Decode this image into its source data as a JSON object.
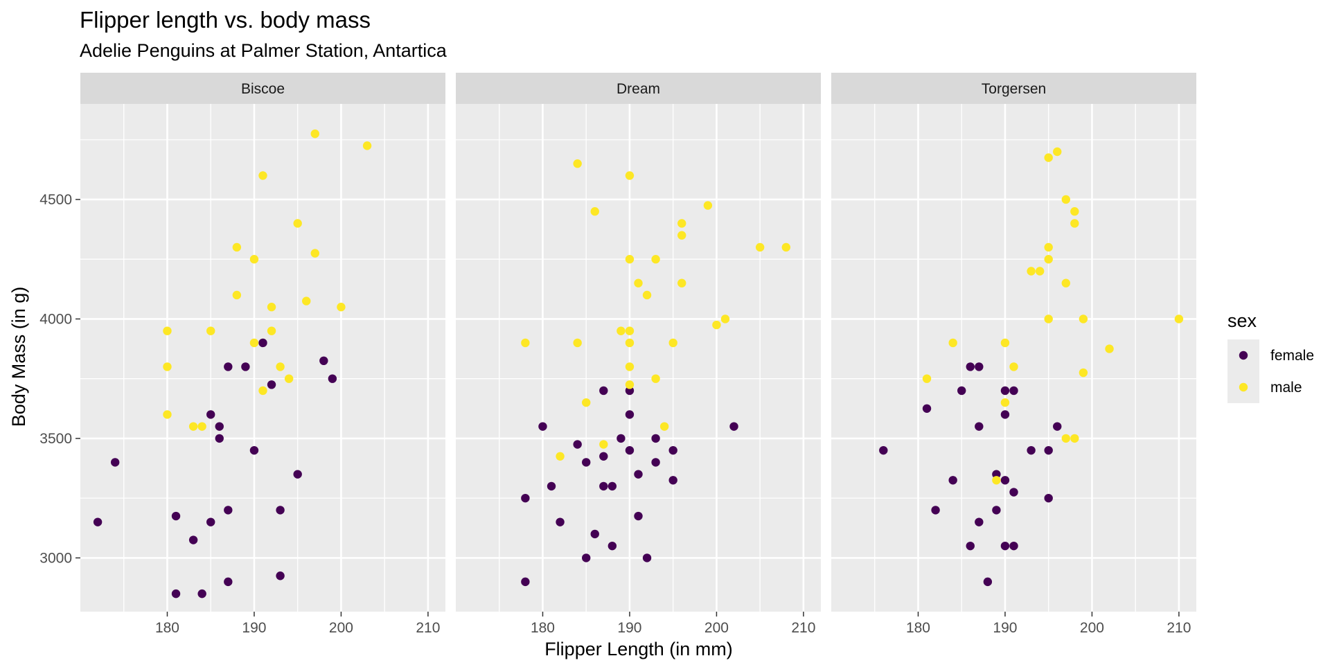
{
  "chart_data": {
    "type": "scatter",
    "title": "Flipper length vs. body mass",
    "subtitle": "Adelie Penguins at Palmer Station, Antartica",
    "xlabel": "Flipper Length (in mm)",
    "ylabel": "Body Mass (in g)",
    "xlim": [
      170,
      212
    ],
    "ylim": [
      2775,
      4900
    ],
    "x_ticks": [
      180,
      190,
      200,
      210
    ],
    "y_ticks": [
      3000,
      3500,
      4000,
      4500
    ],
    "grid": true,
    "legend": {
      "title": "sex",
      "position": "right",
      "entries": [
        {
          "name": "female",
          "color": "#440154"
        },
        {
          "name": "male",
          "color": "#FDE725"
        }
      ]
    },
    "facets": [
      {
        "name": "Biscoe",
        "series": [
          {
            "name": "female",
            "points": [
              [
                172,
                3150
              ],
              [
                174,
                3400
              ],
              [
                181,
                2850
              ],
              [
                181,
                3175
              ],
              [
                183,
                3075
              ],
              [
                184,
                2850
              ],
              [
                185,
                3150
              ],
              [
                185,
                3600
              ],
              [
                186,
                3550
              ],
              [
                186,
                3500
              ],
              [
                187,
                3800
              ],
              [
                187,
                3200
              ],
              [
                187,
                2900
              ],
              [
                189,
                3800
              ],
              [
                190,
                3450
              ],
              [
                191,
                3900
              ],
              [
                192,
                3725
              ],
              [
                193,
                3200
              ],
              [
                193,
                2925
              ],
              [
                195,
                3350
              ],
              [
                198,
                3825
              ],
              [
                199,
                3750
              ]
            ]
          },
          {
            "name": "male",
            "points": [
              [
                180,
                3950
              ],
              [
                180,
                3800
              ],
              [
                180,
                3600
              ],
              [
                183,
                3550
              ],
              [
                184,
                3550
              ],
              [
                185,
                3950
              ],
              [
                188,
                4300
              ],
              [
                188,
                4100
              ],
              [
                190,
                4250
              ],
              [
                190,
                3900
              ],
              [
                191,
                4600
              ],
              [
                191,
                3700
              ],
              [
                192,
                4050
              ],
              [
                192,
                3950
              ],
              [
                193,
                3800
              ],
              [
                194,
                3750
              ],
              [
                195,
                4400
              ],
              [
                196,
                4075
              ],
              [
                197,
                4775
              ],
              [
                197,
                4275
              ],
              [
                200,
                4050
              ],
              [
                203,
                4725
              ]
            ]
          }
        ]
      },
      {
        "name": "Dream",
        "series": [
          {
            "name": "female",
            "points": [
              [
                178,
                3250
              ],
              [
                178,
                2900
              ],
              [
                180,
                3550
              ],
              [
                181,
                3300
              ],
              [
                182,
                3150
              ],
              [
                184,
                3475
              ],
              [
                185,
                3400
              ],
              [
                185,
                3000
              ],
              [
                186,
                3100
              ],
              [
                187,
                3700
              ],
              [
                187,
                3425
              ],
              [
                187,
                3300
              ],
              [
                188,
                3300
              ],
              [
                188,
                3050
              ],
              [
                189,
                3500
              ],
              [
                190,
                3700
              ],
              [
                190,
                3600
              ],
              [
                190,
                3450
              ],
              [
                191,
                3350
              ],
              [
                191,
                3175
              ],
              [
                192,
                3000
              ],
              [
                193,
                3500
              ],
              [
                193,
                3400
              ],
              [
                195,
                3450
              ],
              [
                195,
                3325
              ],
              [
                202,
                3550
              ]
            ]
          },
          {
            "name": "male",
            "points": [
              [
                178,
                3900
              ],
              [
                182,
                3425
              ],
              [
                184,
                4650
              ],
              [
                184,
                3900
              ],
              [
                185,
                3650
              ],
              [
                186,
                4450
              ],
              [
                187,
                3475
              ],
              [
                189,
                3950
              ],
              [
                190,
                4600
              ],
              [
                190,
                4250
              ],
              [
                190,
                3950
              ],
              [
                190,
                3900
              ],
              [
                190,
                3800
              ],
              [
                190,
                3725
              ],
              [
                191,
                4150
              ],
              [
                192,
                4100
              ],
              [
                193,
                4250
              ],
              [
                193,
                3750
              ],
              [
                194,
                3550
              ],
              [
                195,
                3900
              ],
              [
                196,
                4400
              ],
              [
                196,
                4350
              ],
              [
                196,
                4150
              ],
              [
                199,
                4475
              ],
              [
                200,
                3975
              ],
              [
                201,
                4000
              ],
              [
                205,
                4300
              ],
              [
                208,
                4300
              ]
            ]
          }
        ]
      },
      {
        "name": "Torgersen",
        "series": [
          {
            "name": "female",
            "points": [
              [
                176,
                3450
              ],
              [
                181,
                3625
              ],
              [
                182,
                3200
              ],
              [
                184,
                3325
              ],
              [
                185,
                3700
              ],
              [
                186,
                3800
              ],
              [
                186,
                3050
              ],
              [
                187,
                3800
              ],
              [
                187,
                3550
              ],
              [
                187,
                3150
              ],
              [
                188,
                2900
              ],
              [
                189,
                3350
              ],
              [
                189,
                3200
              ],
              [
                190,
                3700
              ],
              [
                190,
                3600
              ],
              [
                190,
                3325
              ],
              [
                190,
                3050
              ],
              [
                191,
                3700
              ],
              [
                191,
                3275
              ],
              [
                191,
                3050
              ],
              [
                193,
                3450
              ],
              [
                195,
                3450
              ],
              [
                195,
                3250
              ],
              [
                196,
                3550
              ]
            ]
          },
          {
            "name": "male",
            "points": [
              [
                181,
                3750
              ],
              [
                184,
                3900
              ],
              [
                189,
                3325
              ],
              [
                190,
                3900
              ],
              [
                190,
                3650
              ],
              [
                191,
                3800
              ],
              [
                193,
                4200
              ],
              [
                194,
                4200
              ],
              [
                195,
                4675
              ],
              [
                195,
                4300
              ],
              [
                195,
                4250
              ],
              [
                195,
                4000
              ],
              [
                196,
                4700
              ],
              [
                197,
                4500
              ],
              [
                197,
                4150
              ],
              [
                197,
                3500
              ],
              [
                198,
                4450
              ],
              [
                198,
                4400
              ],
              [
                198,
                3500
              ],
              [
                199,
                4000
              ],
              [
                199,
                3775
              ],
              [
                202,
                3875
              ],
              [
                210,
                4000
              ]
            ]
          }
        ]
      }
    ]
  }
}
